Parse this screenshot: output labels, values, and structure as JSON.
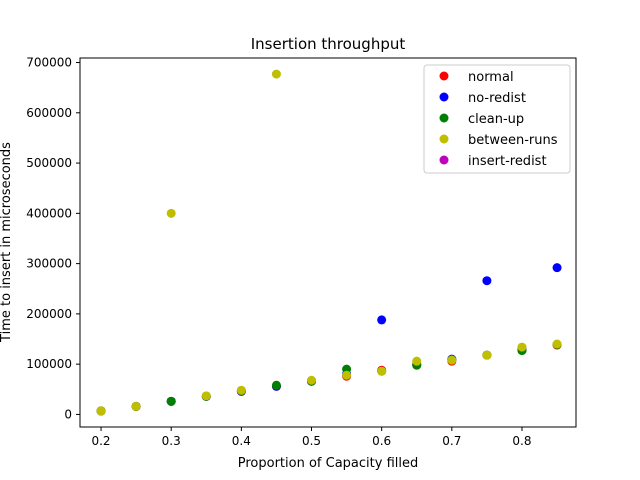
{
  "chart_data": {
    "type": "scatter",
    "title": "Insertion throughput",
    "xlabel": "Proportion of Capacity filled",
    "ylabel": "Time to insert in microseconds",
    "xlim": [
      0.17,
      0.877
    ],
    "ylim": [
      -25000,
      709000
    ],
    "xticks": [
      0.2,
      0.3,
      0.4,
      0.5,
      0.6,
      0.7,
      0.8
    ],
    "xtick_labels": [
      "0.2",
      "0.3",
      "0.4",
      "0.5",
      "0.6",
      "0.7",
      "0.8"
    ],
    "yticks": [
      0,
      100000,
      200000,
      300000,
      400000,
      500000,
      600000,
      700000
    ],
    "ytick_labels": [
      "0",
      "100000",
      "200000",
      "300000",
      "400000",
      "500000",
      "600000",
      "700000"
    ],
    "grid": false,
    "legend_position": "top-right",
    "series": [
      {
        "name": "normal",
        "color": "#ff0000",
        "x": [
          0.2,
          0.25,
          0.3,
          0.35,
          0.4,
          0.45,
          0.5,
          0.55,
          0.6,
          0.65,
          0.7,
          0.75,
          0.8,
          0.85
        ],
        "y": [
          7000,
          16000,
          26000,
          36000,
          46000,
          56000,
          66000,
          76000,
          88000,
          98000,
          106000,
          118000,
          128000,
          138000
        ]
      },
      {
        "name": "no-redist",
        "color": "#0000ff",
        "x": [
          0.2,
          0.25,
          0.3,
          0.35,
          0.4,
          0.45,
          0.5,
          0.55,
          0.6,
          0.65,
          0.7,
          0.75,
          0.8,
          0.85
        ],
        "y": [
          7000,
          16000,
          26000,
          36000,
          46000,
          56000,
          66000,
          80000,
          188000,
          100000,
          110000,
          266000,
          130000,
          292000
        ]
      },
      {
        "name": "clean-up",
        "color": "#008000",
        "x": [
          0.2,
          0.25,
          0.3,
          0.35,
          0.4,
          0.45,
          0.5,
          0.55,
          0.6,
          0.65,
          0.7,
          0.75,
          0.8,
          0.85
        ],
        "y": [
          7000,
          16000,
          26000,
          36000,
          47000,
          58000,
          66000,
          90000,
          86000,
          98000,
          109000,
          118000,
          127000,
          139000
        ]
      },
      {
        "name": "between-runs",
        "color": "#bfbf00",
        "x": [
          0.2,
          0.25,
          0.3,
          0.35,
          0.4,
          0.45,
          0.5,
          0.55,
          0.6,
          0.65,
          0.7,
          0.75,
          0.8,
          0.85
        ],
        "y": [
          7000,
          16000,
          400000,
          37000,
          48000,
          677000,
          68000,
          78000,
          86000,
          106000,
          108000,
          118000,
          134000,
          140000
        ]
      },
      {
        "name": "insert-redist",
        "color": "#bf00bf",
        "x": [],
        "y": []
      }
    ]
  }
}
